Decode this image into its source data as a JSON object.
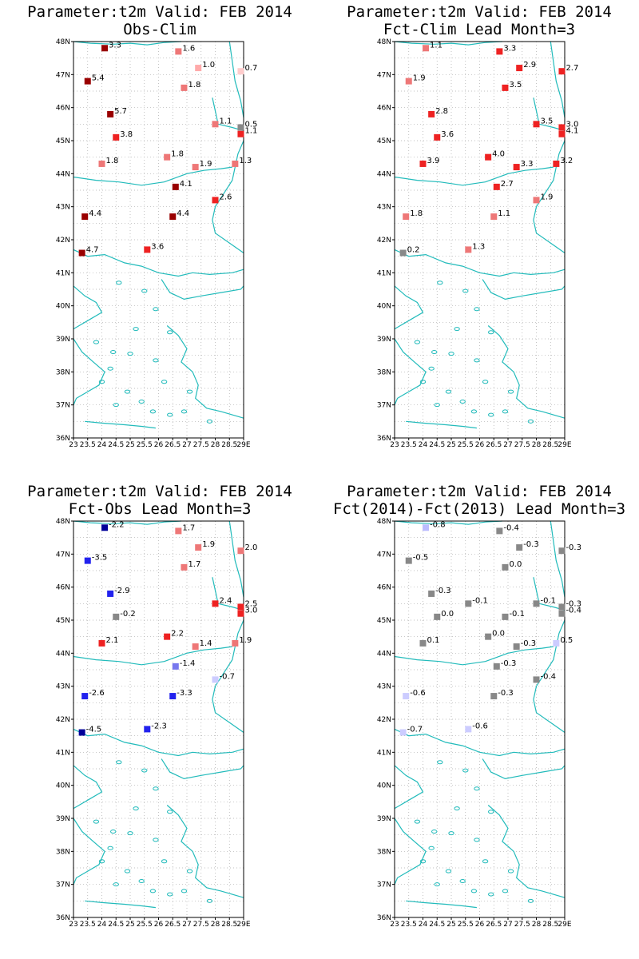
{
  "panels": [
    {
      "title1": "Parameter:t2m Valid: FEB 2014",
      "title2": "Obs-Clim",
      "stations": [
        {
          "lon": 24.1,
          "lat": 47.8,
          "value": "3.3",
          "color": "#990000"
        },
        {
          "lon": 26.7,
          "lat": 47.7,
          "value": "1.6",
          "color": "#ee7777"
        },
        {
          "lon": 27.4,
          "lat": 47.2,
          "value": "1.0",
          "color": "#ffaaaa"
        },
        {
          "lon": 28.9,
          "lat": 47.1,
          "value": "0.7",
          "color": "#ffcccc"
        },
        {
          "lon": 23.5,
          "lat": 46.8,
          "value": "5.4",
          "color": "#990000"
        },
        {
          "lon": 26.9,
          "lat": 46.6,
          "value": "1.8",
          "color": "#ee7777"
        },
        {
          "lon": 24.3,
          "lat": 45.8,
          "value": "5.7",
          "color": "#990000"
        },
        {
          "lon": 28.0,
          "lat": 45.5,
          "value": "1.1",
          "color": "#ee7777"
        },
        {
          "lon": 28.9,
          "lat": 45.4,
          "value": "0.5",
          "color": "#888888"
        },
        {
          "lon": 28.9,
          "lat": 45.2,
          "value": "1.1",
          "color": "#ee2222"
        },
        {
          "lon": 24.5,
          "lat": 45.1,
          "value": "3.8",
          "color": "#ee2222"
        },
        {
          "lon": 26.3,
          "lat": 44.5,
          "value": "1.8",
          "color": "#ee7777"
        },
        {
          "lon": 24.0,
          "lat": 44.3,
          "value": "1.8",
          "color": "#ee7777"
        },
        {
          "lon": 27.3,
          "lat": 44.2,
          "value": "1.9",
          "color": "#ee7777"
        },
        {
          "lon": 28.7,
          "lat": 44.3,
          "value": "1.3",
          "color": "#ee7777"
        },
        {
          "lon": 26.6,
          "lat": 43.6,
          "value": "4.1",
          "color": "#990000"
        },
        {
          "lon": 28.0,
          "lat": 43.2,
          "value": "2.6",
          "color": "#ee2222"
        },
        {
          "lon": 23.4,
          "lat": 42.7,
          "value": "4.4",
          "color": "#990000"
        },
        {
          "lon": 26.5,
          "lat": 42.7,
          "value": "4.4",
          "color": "#990000"
        },
        {
          "lon": 25.6,
          "lat": 41.7,
          "value": "3.6",
          "color": "#ee2222"
        },
        {
          "lon": 23.3,
          "lat": 41.6,
          "value": "4.7",
          "color": "#990000"
        }
      ]
    },
    {
      "title1": "Parameter:t2m Valid: FEB 2014",
      "title2": "Fct-Clim Lead Month=3",
      "stations": [
        {
          "lon": 24.1,
          "lat": 47.8,
          "value": "1.1",
          "color": "#ee7777"
        },
        {
          "lon": 26.7,
          "lat": 47.7,
          "value": "3.3",
          "color": "#ee2222"
        },
        {
          "lon": 27.4,
          "lat": 47.2,
          "value": "2.9",
          "color": "#ee2222"
        },
        {
          "lon": 28.9,
          "lat": 47.1,
          "value": "2.7",
          "color": "#ee2222"
        },
        {
          "lon": 23.5,
          "lat": 46.8,
          "value": "1.9",
          "color": "#ee7777"
        },
        {
          "lon": 26.9,
          "lat": 46.6,
          "value": "3.5",
          "color": "#ee2222"
        },
        {
          "lon": 24.3,
          "lat": 45.8,
          "value": "2.8",
          "color": "#ee2222"
        },
        {
          "lon": 28.0,
          "lat": 45.5,
          "value": "3.5",
          "color": "#ee2222"
        },
        {
          "lon": 28.9,
          "lat": 45.4,
          "value": "3.0",
          "color": "#ee2222"
        },
        {
          "lon": 28.9,
          "lat": 45.2,
          "value": "4.1",
          "color": "#ee2222"
        },
        {
          "lon": 24.5,
          "lat": 45.1,
          "value": "3.6",
          "color": "#ee2222"
        },
        {
          "lon": 26.3,
          "lat": 44.5,
          "value": "4.0",
          "color": "#ee2222"
        },
        {
          "lon": 24.0,
          "lat": 44.3,
          "value": "3.9",
          "color": "#ee2222"
        },
        {
          "lon": 27.3,
          "lat": 44.2,
          "value": "3.3",
          "color": "#ee2222"
        },
        {
          "lon": 28.7,
          "lat": 44.3,
          "value": "3.2",
          "color": "#ee2222"
        },
        {
          "lon": 26.6,
          "lat": 43.6,
          "value": "2.7",
          "color": "#ee2222"
        },
        {
          "lon": 28.0,
          "lat": 43.2,
          "value": "1.9",
          "color": "#ee7777"
        },
        {
          "lon": 23.4,
          "lat": 42.7,
          "value": "1.8",
          "color": "#ee7777"
        },
        {
          "lon": 26.5,
          "lat": 42.7,
          "value": "1.1",
          "color": "#ee7777"
        },
        {
          "lon": 25.6,
          "lat": 41.7,
          "value": "1.3",
          "color": "#ee7777"
        },
        {
          "lon": 23.3,
          "lat": 41.6,
          "value": "0.2",
          "color": "#888888"
        }
      ]
    },
    {
      "title1": "Parameter:t2m Valid: FEB 2014",
      "title2": "Fct-Obs Lead Month=3",
      "stations": [
        {
          "lon": 24.1,
          "lat": 47.8,
          "value": "-2.2",
          "color": "#000099"
        },
        {
          "lon": 26.7,
          "lat": 47.7,
          "value": "1.7",
          "color": "#ee7777"
        },
        {
          "lon": 27.4,
          "lat": 47.2,
          "value": "1.9",
          "color": "#ee7777"
        },
        {
          "lon": 28.9,
          "lat": 47.1,
          "value": "2.0",
          "color": "#ee7777"
        },
        {
          "lon": 23.5,
          "lat": 46.8,
          "value": "-3.5",
          "color": "#2222ee"
        },
        {
          "lon": 26.9,
          "lat": 46.6,
          "value": "1.7",
          "color": "#ee7777"
        },
        {
          "lon": 24.3,
          "lat": 45.8,
          "value": "-2.9",
          "color": "#2222ee"
        },
        {
          "lon": 28.0,
          "lat": 45.5,
          "value": "2.4",
          "color": "#ee2222"
        },
        {
          "lon": 28.9,
          "lat": 45.4,
          "value": "2.5",
          "color": "#ee2222"
        },
        {
          "lon": 28.9,
          "lat": 45.2,
          "value": "3.0",
          "color": "#ee2222"
        },
        {
          "lon": 24.5,
          "lat": 45.1,
          "value": "-0.2",
          "color": "#888888"
        },
        {
          "lon": 26.3,
          "lat": 44.5,
          "value": "2.2",
          "color": "#ee2222"
        },
        {
          "lon": 24.0,
          "lat": 44.3,
          "value": "2.1",
          "color": "#ee2222"
        },
        {
          "lon": 27.3,
          "lat": 44.2,
          "value": "1.4",
          "color": "#ee7777"
        },
        {
          "lon": 28.7,
          "lat": 44.3,
          "value": "1.9",
          "color": "#ee7777"
        },
        {
          "lon": 26.6,
          "lat": 43.6,
          "value": "-1.4",
          "color": "#7777ee"
        },
        {
          "lon": 28.0,
          "lat": 43.2,
          "value": "-0.7",
          "color": "#ccccff"
        },
        {
          "lon": 23.4,
          "lat": 42.7,
          "value": "-2.6",
          "color": "#2222ee"
        },
        {
          "lon": 26.5,
          "lat": 42.7,
          "value": "-3.3",
          "color": "#2222ee"
        },
        {
          "lon": 25.6,
          "lat": 41.7,
          "value": "-2.3",
          "color": "#2222ee"
        },
        {
          "lon": 23.3,
          "lat": 41.6,
          "value": "-4.5",
          "color": "#000099"
        }
      ]
    },
    {
      "title1": "Parameter:t2m Valid: FEB 2014",
      "title2": "Fct(2014)-Fct(2013) Lead Month=3",
      "stations": [
        {
          "lon": 24.1,
          "lat": 47.8,
          "value": "-0.8",
          "color": "#bbbbff"
        },
        {
          "lon": 26.7,
          "lat": 47.7,
          "value": "-0.4",
          "color": "#888888"
        },
        {
          "lon": 27.4,
          "lat": 47.2,
          "value": "-0.3",
          "color": "#888888"
        },
        {
          "lon": 28.9,
          "lat": 47.1,
          "value": "-0.3",
          "color": "#888888"
        },
        {
          "lon": 23.5,
          "lat": 46.8,
          "value": "-0.5",
          "color": "#888888"
        },
        {
          "lon": 26.9,
          "lat": 46.6,
          "value": "0.0",
          "color": "#888888"
        },
        {
          "lon": 24.3,
          "lat": 45.8,
          "value": "-0.3",
          "color": "#888888"
        },
        {
          "lon": 25.6,
          "lat": 45.5,
          "value": "-0.1",
          "color": "#888888"
        },
        {
          "lon": 28.0,
          "lat": 45.5,
          "value": "-0.1",
          "color": "#888888"
        },
        {
          "lon": 28.9,
          "lat": 45.4,
          "value": "-0.3",
          "color": "#888888"
        },
        {
          "lon": 28.9,
          "lat": 45.2,
          "value": "-0.4",
          "color": "#888888"
        },
        {
          "lon": 24.5,
          "lat": 45.1,
          "value": "0.0",
          "color": "#888888"
        },
        {
          "lon": 26.9,
          "lat": 45.1,
          "value": "-0.1",
          "color": "#888888"
        },
        {
          "lon": 26.3,
          "lat": 44.5,
          "value": "0.0",
          "color": "#888888"
        },
        {
          "lon": 24.0,
          "lat": 44.3,
          "value": "0.1",
          "color": "#888888"
        },
        {
          "lon": 27.3,
          "lat": 44.2,
          "value": "-0.3",
          "color": "#888888"
        },
        {
          "lon": 28.7,
          "lat": 44.3,
          "value": "0.5",
          "color": "#ccccff"
        },
        {
          "lon": 26.6,
          "lat": 43.6,
          "value": "-0.3",
          "color": "#888888"
        },
        {
          "lon": 28.0,
          "lat": 43.2,
          "value": "-0.4",
          "color": "#888888"
        },
        {
          "lon": 23.4,
          "lat": 42.7,
          "value": "-0.6",
          "color": "#ccccff"
        },
        {
          "lon": 26.5,
          "lat": 42.7,
          "value": "-0.3",
          "color": "#888888"
        },
        {
          "lon": 25.6,
          "lat": 41.7,
          "value": "-0.6",
          "color": "#ccccff"
        },
        {
          "lon": 23.3,
          "lat": 41.6,
          "value": "-0.7",
          "color": "#ccccff"
        }
      ]
    }
  ],
  "lat_ticks": [
    "48N",
    "47N",
    "46N",
    "45N",
    "44N",
    "43N",
    "42N",
    "41N",
    "40N",
    "39N",
    "38N",
    "37N",
    "36N"
  ],
  "lon_ticks": [
    "23",
    "23.5",
    "24",
    "24.5",
    "25",
    "25.5",
    "26",
    "26.5",
    "27",
    "27.5",
    "28",
    "28.5",
    "29E"
  ],
  "coast_color": "#22bbbb",
  "grid_color": "#aaaaaa"
}
